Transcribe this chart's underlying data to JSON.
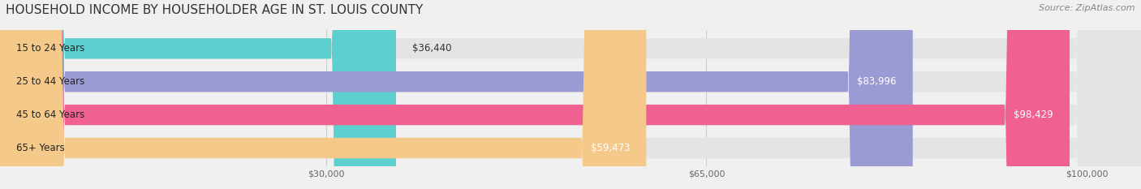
{
  "title": "HOUSEHOLD INCOME BY HOUSEHOLDER AGE IN ST. LOUIS COUNTY",
  "source": "Source: ZipAtlas.com",
  "categories": [
    "15 to 24 Years",
    "25 to 44 Years",
    "45 to 64 Years",
    "65+ Years"
  ],
  "values": [
    36440,
    83996,
    98429,
    59473
  ],
  "bar_colors": [
    "#5ecfcf",
    "#9b9bd4",
    "#f06090",
    "#f5c98a"
  ],
  "label_colors": [
    "#333333",
    "#ffffff",
    "#ffffff",
    "#333333"
  ],
  "background_color": "#f0f0f0",
  "bar_bg_color": "#e4e4e4",
  "xlim_max": 105000,
  "xticks": [
    30000,
    65000,
    100000
  ],
  "xtick_labels": [
    "$30,000",
    "$65,000",
    "$100,000"
  ],
  "value_labels": [
    "$36,440",
    "$83,996",
    "$98,429",
    "$59,473"
  ],
  "title_fontsize": 11,
  "source_fontsize": 8,
  "bar_height": 0.62,
  "category_fontsize": 8.5,
  "value_fontsize": 8.5
}
